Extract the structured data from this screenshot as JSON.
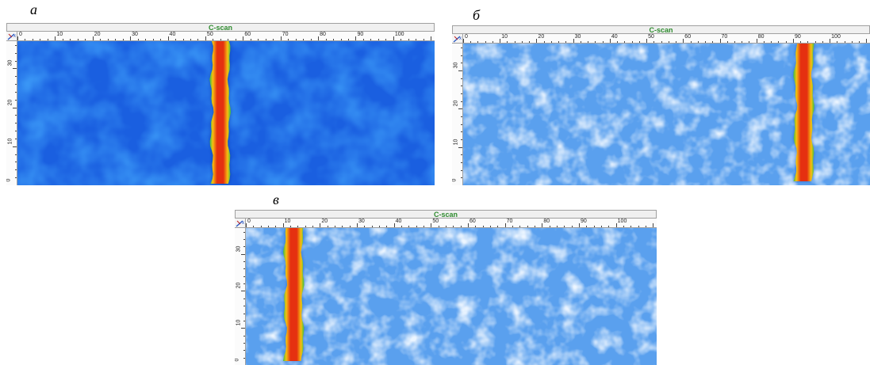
{
  "panels": [
    {
      "label": "а",
      "title": "C-scan",
      "x_ticks": [
        "0",
        "10",
        "20",
        "30",
        "40",
        "50",
        "60",
        "70",
        "80",
        "90",
        "100"
      ],
      "y_ticks": [
        "30",
        "20",
        "10",
        "0"
      ],
      "background_style": "dark-blue",
      "defect_position_x": 54
    },
    {
      "label": "б",
      "title": "C-scan",
      "x_ticks": [
        "0",
        "10",
        "20",
        "30",
        "40",
        "50",
        "60",
        "70",
        "80",
        "90",
        "100"
      ],
      "y_ticks": [
        "30",
        "20",
        "10",
        "0"
      ],
      "background_style": "light-blue",
      "defect_position_x": 93
    },
    {
      "label": "в",
      "title": "C-scan",
      "x_ticks": [
        "0",
        "10",
        "20",
        "30",
        "40",
        "50",
        "60",
        "70",
        "80",
        "90",
        "100"
      ],
      "y_ticks": [
        "30",
        "20",
        "10",
        "0"
      ],
      "background_style": "light-blue",
      "defect_position_x": 13
    }
  ],
  "colors": {
    "title_text": "#2e8b2e",
    "dark_blue_bg": "#1a5fe0",
    "light_blue_bg": "#5aa0ee",
    "defect_core": "#e53010",
    "defect_mid": "#f6c010",
    "defect_edge": "#3ac040"
  },
  "icons": {
    "corner": "axis-xy-icon"
  }
}
